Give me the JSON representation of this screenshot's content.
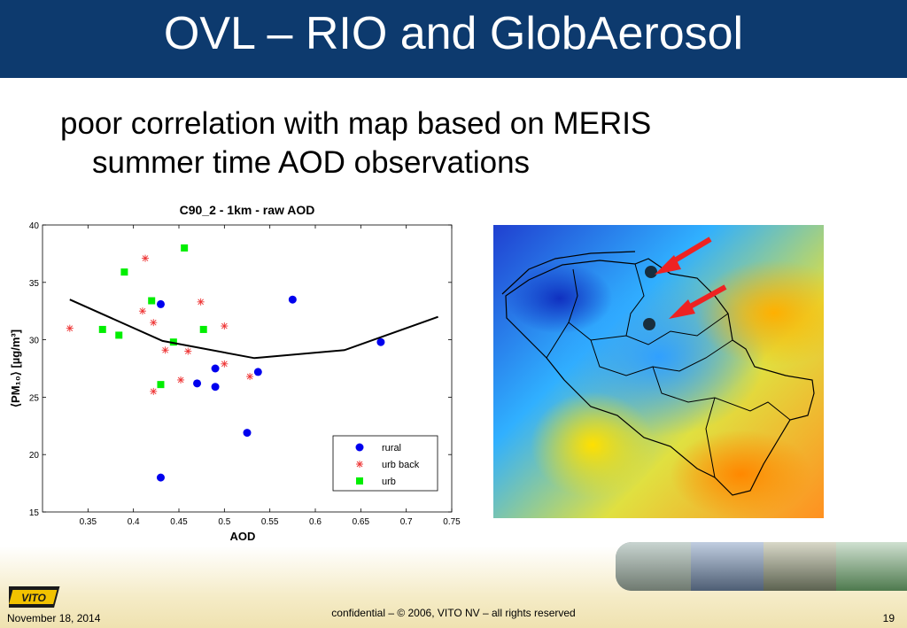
{
  "slide": {
    "title": "OVL – RIO and GlobAerosol",
    "bullet_line1": "poor correlation with map based on MERIS",
    "bullet_line2": "summer time AOD observations"
  },
  "footer": {
    "date": "November 18, 2014",
    "confidential": "confidential – © 2006, VITO NV – all rights reserved",
    "page": "19",
    "logo_text": "VITO"
  },
  "chart_data": {
    "type": "scatter",
    "title": "C90_2 - 1km - raw  AOD",
    "xlabel": "AOD",
    "ylabel": "⟨PM₁₀⟩ [µg/m³]",
    "xlim": [
      0.3,
      0.75
    ],
    "ylim": [
      15,
      40
    ],
    "xticks": [
      "0.35",
      "0.4",
      "0.45",
      "0.5",
      "0.55",
      "0.6",
      "0.65",
      "0.7",
      "0.75"
    ],
    "yticks": [
      "15",
      "20",
      "25",
      "30",
      "35",
      "40"
    ],
    "legend_position": "bottom-right",
    "series": [
      {
        "name": "rural",
        "marker": "circle",
        "color": "#0000ee",
        "points": [
          [
            0.43,
            33.1
          ],
          [
            0.575,
            33.5
          ],
          [
            0.672,
            29.8
          ],
          [
            0.49,
            27.5
          ],
          [
            0.537,
            27.2
          ],
          [
            0.47,
            26.2
          ],
          [
            0.49,
            25.9
          ],
          [
            0.525,
            21.9
          ],
          [
            0.43,
            18
          ]
        ]
      },
      {
        "name": "urb back",
        "marker": "star",
        "color": "#ee3333",
        "points": [
          [
            0.413,
            37.1
          ],
          [
            0.41,
            32.5
          ],
          [
            0.422,
            31.5
          ],
          [
            0.474,
            33.3
          ],
          [
            0.5,
            31.2
          ],
          [
            0.33,
            31
          ],
          [
            0.435,
            29.1
          ],
          [
            0.46,
            29
          ],
          [
            0.5,
            27.9
          ],
          [
            0.452,
            26.5
          ],
          [
            0.422,
            25.5
          ],
          [
            0.528,
            26.8
          ]
        ]
      },
      {
        "name": "urb",
        "marker": "square",
        "color": "#00ee00",
        "points": [
          [
            0.456,
            38
          ],
          [
            0.39,
            35.9
          ],
          [
            0.42,
            33.4
          ],
          [
            0.366,
            30.9
          ],
          [
            0.384,
            30.4
          ],
          [
            0.477,
            30.9
          ],
          [
            0.444,
            29.8
          ],
          [
            0.43,
            26.1
          ]
        ]
      },
      {
        "name": "",
        "marker": "line",
        "color": "#000000",
        "points": [
          [
            0.33,
            33.5
          ],
          [
            0.432,
            29.9
          ],
          [
            0.533,
            28.4
          ],
          [
            0.632,
            29.1
          ],
          [
            0.735,
            32
          ]
        ]
      }
    ]
  },
  "map": {
    "arrow_color": "#ee2222",
    "colors": [
      "#2040d0",
      "#30b0ff",
      "#e0e040",
      "#ff9020"
    ]
  },
  "photos": [
    {
      "name": "industrial-photo",
      "color": "#9aa8a0"
    },
    {
      "name": "city-photo",
      "color": "#6e7f94"
    },
    {
      "name": "building-photo",
      "color": "#7a8070"
    },
    {
      "name": "landscape-photo",
      "color": "#6a8e6a"
    }
  ]
}
